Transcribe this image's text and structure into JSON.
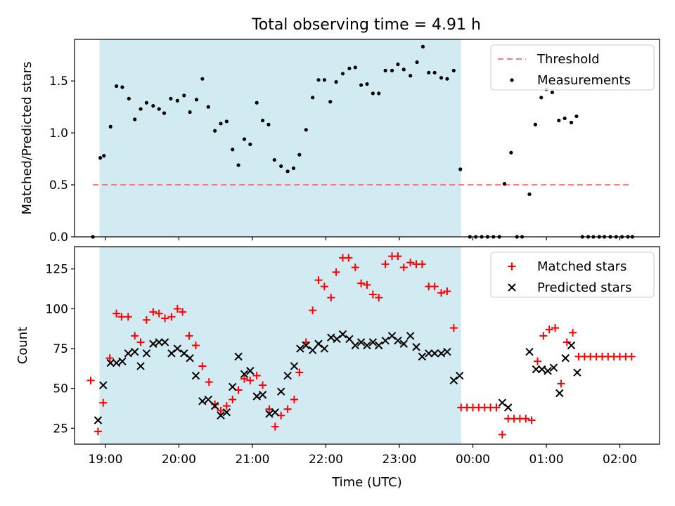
{
  "chart_data": [
    {
      "type": "scatter",
      "title": "Total observing time = 4.91 h",
      "xlabel": "",
      "ylabel": "Matched/Predicted stars",
      "x_unit": "hours UTC (24 = 00:00 next day)",
      "xlim": [
        18.58,
        26.54
      ],
      "ylim": [
        0,
        1.9
      ],
      "yticks": [
        0.0,
        0.5,
        1.0,
        1.5
      ],
      "yticklabels": [
        "0.0",
        "0.5",
        "1.0",
        "1.5"
      ],
      "xticks": [
        19,
        20,
        21,
        22,
        23,
        24,
        25,
        26
      ],
      "grid": false,
      "legend_position": "top-right",
      "shaded_region": {
        "x_start": 18.92,
        "x_end": 23.84,
        "color": "#add8e6"
      },
      "series": [
        {
          "name": "Threshold",
          "style": "dashed-line",
          "color": "#ff6666",
          "points": [
            [
              18.83,
              0.5
            ],
            [
              26.17,
              0.5
            ]
          ]
        },
        {
          "name": "Measurements",
          "style": "dot",
          "color": "#000000",
          "points": [
            [
              18.83,
              0.0
            ],
            [
              18.93,
              0.76
            ],
            [
              18.98,
              0.78
            ],
            [
              19.07,
              1.06
            ],
            [
              19.15,
              1.45
            ],
            [
              19.23,
              1.44
            ],
            [
              19.32,
              1.33
            ],
            [
              19.4,
              1.13
            ],
            [
              19.48,
              1.23
            ],
            [
              19.56,
              1.29
            ],
            [
              19.65,
              1.26
            ],
            [
              19.73,
              1.23
            ],
            [
              19.8,
              1.19
            ],
            [
              19.89,
              1.33
            ],
            [
              19.98,
              1.31
            ],
            [
              20.07,
              1.36
            ],
            [
              20.15,
              1.2
            ],
            [
              20.24,
              1.32
            ],
            [
              20.32,
              1.52
            ],
            [
              20.4,
              1.25
            ],
            [
              20.49,
              1.02
            ],
            [
              20.57,
              1.09
            ],
            [
              20.65,
              1.11
            ],
            [
              20.73,
              0.84
            ],
            [
              20.81,
              0.69
            ],
            [
              20.89,
              0.94
            ],
            [
              20.97,
              0.89
            ],
            [
              21.06,
              1.29
            ],
            [
              21.14,
              1.12
            ],
            [
              21.22,
              1.08
            ],
            [
              21.3,
              0.74
            ],
            [
              21.39,
              0.68
            ],
            [
              21.48,
              0.63
            ],
            [
              21.56,
              0.66
            ],
            [
              21.64,
              0.79
            ],
            [
              21.73,
              1.03
            ],
            [
              21.82,
              1.34
            ],
            [
              21.9,
              1.51
            ],
            [
              21.98,
              1.51
            ],
            [
              22.06,
              1.3
            ],
            [
              22.14,
              1.49
            ],
            [
              22.23,
              1.57
            ],
            [
              22.32,
              1.62
            ],
            [
              22.4,
              1.63
            ],
            [
              22.48,
              1.46
            ],
            [
              22.56,
              1.47
            ],
            [
              22.64,
              1.38
            ],
            [
              22.72,
              1.38
            ],
            [
              22.81,
              1.6
            ],
            [
              22.9,
              1.6
            ],
            [
              22.98,
              1.66
            ],
            [
              23.06,
              1.61
            ],
            [
              23.15,
              1.55
            ],
            [
              23.24,
              1.68
            ],
            [
              23.32,
              1.83
            ],
            [
              23.4,
              1.58
            ],
            [
              23.48,
              1.58
            ],
            [
              23.57,
              1.53
            ],
            [
              23.65,
              1.52
            ],
            [
              23.74,
              1.6
            ],
            [
              23.83,
              0.65
            ],
            [
              23.96,
              0.0
            ],
            [
              24.04,
              0.0
            ],
            [
              24.12,
              0.0
            ],
            [
              24.2,
              0.0
            ],
            [
              24.28,
              0.0
            ],
            [
              24.36,
              0.0
            ],
            [
              24.43,
              0.51
            ],
            [
              24.52,
              0.81
            ],
            [
              24.6,
              0.0
            ],
            [
              24.67,
              0.0
            ],
            [
              24.77,
              0.41
            ],
            [
              24.85,
              1.08
            ],
            [
              24.93,
              1.34
            ],
            [
              25.0,
              1.42
            ],
            [
              25.08,
              1.39
            ],
            [
              25.17,
              1.12
            ],
            [
              25.25,
              1.14
            ],
            [
              25.34,
              1.1
            ],
            [
              25.41,
              1.16
            ],
            [
              25.49,
              0.0
            ],
            [
              25.57,
              0.0
            ],
            [
              25.64,
              0.0
            ],
            [
              25.72,
              0.0
            ],
            [
              25.79,
              0.0
            ],
            [
              25.87,
              0.0
            ],
            [
              25.95,
              0.0
            ],
            [
              26.03,
              0.0
            ],
            [
              26.11,
              0.0
            ],
            [
              26.17,
              0.0
            ]
          ]
        }
      ]
    },
    {
      "type": "scatter",
      "title": "",
      "xlabel": "Time (UTC)",
      "ylabel": "Count",
      "x_unit": "hours UTC (24 = 00:00 next day)",
      "xlim": [
        18.58,
        26.54
      ],
      "ylim": [
        15,
        139
      ],
      "yticks": [
        25,
        50,
        75,
        100,
        125
      ],
      "yticklabels": [
        "25",
        "50",
        "75",
        "100",
        "125"
      ],
      "xticks": [
        19,
        20,
        21,
        22,
        23,
        24,
        25,
        26
      ],
      "xticklabels": [
        "19:00",
        "20:00",
        "21:00",
        "22:00",
        "23:00",
        "00:00",
        "01:00",
        "02:00"
      ],
      "grid": false,
      "legend_position": "top-right",
      "shaded_region": {
        "x_start": 18.92,
        "x_end": 23.84,
        "color": "#add8e6"
      },
      "series": [
        {
          "name": "Matched stars",
          "marker": "plus",
          "color": "#ff0000",
          "points": [
            [
              18.8,
              55
            ],
            [
              18.9,
              23
            ],
            [
              18.97,
              41
            ],
            [
              19.06,
              69
            ],
            [
              19.15,
              97
            ],
            [
              19.22,
              95
            ],
            [
              19.31,
              95
            ],
            [
              19.4,
              83
            ],
            [
              19.48,
              79
            ],
            [
              19.56,
              93
            ],
            [
              19.65,
              98
            ],
            [
              19.73,
              97
            ],
            [
              19.81,
              94
            ],
            [
              19.9,
              95
            ],
            [
              19.98,
              100
            ],
            [
              20.05,
              98
            ],
            [
              20.14,
              83
            ],
            [
              20.23,
              77
            ],
            [
              20.32,
              64
            ],
            [
              20.41,
              54
            ],
            [
              20.49,
              40
            ],
            [
              20.57,
              36
            ],
            [
              20.65,
              39
            ],
            [
              20.73,
              43
            ],
            [
              20.81,
              49
            ],
            [
              20.89,
              56
            ],
            [
              20.97,
              55
            ],
            [
              21.06,
              58
            ],
            [
              21.14,
              52
            ],
            [
              21.23,
              37
            ],
            [
              21.31,
              26
            ],
            [
              21.39,
              33
            ],
            [
              21.48,
              37
            ],
            [
              21.57,
              43
            ],
            [
              21.64,
              60
            ],
            [
              21.73,
              79
            ],
            [
              21.82,
              99
            ],
            [
              21.9,
              118
            ],
            [
              21.98,
              114
            ],
            [
              22.07,
              107
            ],
            [
              22.14,
              123
            ],
            [
              22.23,
              132
            ],
            [
              22.31,
              132
            ],
            [
              22.4,
              126
            ],
            [
              22.48,
              116
            ],
            [
              22.56,
              115
            ],
            [
              22.64,
              109
            ],
            [
              22.72,
              107
            ],
            [
              22.81,
              128
            ],
            [
              22.9,
              133
            ],
            [
              22.98,
              133
            ],
            [
              23.06,
              126
            ],
            [
              23.15,
              129
            ],
            [
              23.23,
              128
            ],
            [
              23.31,
              128
            ],
            [
              23.4,
              114
            ],
            [
              23.48,
              114
            ],
            [
              23.57,
              110
            ],
            [
              23.65,
              111
            ],
            [
              23.74,
              88
            ],
            [
              23.84,
              38
            ],
            [
              23.92,
              38
            ],
            [
              24.0,
              38
            ],
            [
              24.08,
              38
            ],
            [
              24.16,
              38
            ],
            [
              24.24,
              38
            ],
            [
              24.32,
              38
            ],
            [
              24.4,
              21
            ],
            [
              24.48,
              31
            ],
            [
              24.56,
              31
            ],
            [
              24.64,
              31
            ],
            [
              24.72,
              31
            ],
            [
              24.8,
              30
            ],
            [
              24.88,
              67
            ],
            [
              24.96,
              83
            ],
            [
              25.04,
              87
            ],
            [
              25.12,
              88
            ],
            [
              25.2,
              53
            ],
            [
              25.28,
              79
            ],
            [
              25.36,
              85
            ],
            [
              25.44,
              70
            ],
            [
              25.52,
              70
            ],
            [
              25.6,
              70
            ],
            [
              25.68,
              70
            ],
            [
              25.76,
              70
            ],
            [
              25.84,
              70
            ],
            [
              25.92,
              70
            ],
            [
              26.0,
              70
            ],
            [
              26.08,
              70
            ],
            [
              26.16,
              70
            ]
          ]
        },
        {
          "name": "Predicted stars",
          "marker": "x",
          "color": "#000000",
          "points": [
            [
              18.9,
              30
            ],
            [
              18.97,
              52
            ],
            [
              19.07,
              66
            ],
            [
              19.15,
              66
            ],
            [
              19.23,
              67
            ],
            [
              19.31,
              72
            ],
            [
              19.4,
              73
            ],
            [
              19.48,
              64
            ],
            [
              19.56,
              72
            ],
            [
              19.65,
              78
            ],
            [
              19.73,
              79
            ],
            [
              19.81,
              79
            ],
            [
              19.9,
              72
            ],
            [
              19.98,
              75
            ],
            [
              20.07,
              72
            ],
            [
              20.15,
              69
            ],
            [
              20.23,
              58
            ],
            [
              20.32,
              42
            ],
            [
              20.4,
              43
            ],
            [
              20.49,
              39
            ],
            [
              20.57,
              33
            ],
            [
              20.65,
              35
            ],
            [
              20.73,
              51
            ],
            [
              20.81,
              70
            ],
            [
              20.89,
              59
            ],
            [
              20.97,
              61
            ],
            [
              21.06,
              45
            ],
            [
              21.14,
              46
            ],
            [
              21.23,
              34
            ],
            [
              21.31,
              35
            ],
            [
              21.39,
              48
            ],
            [
              21.48,
              58
            ],
            [
              21.57,
              64
            ],
            [
              21.65,
              75
            ],
            [
              21.73,
              77
            ],
            [
              21.82,
              74
            ],
            [
              21.9,
              78
            ],
            [
              21.98,
              75
            ],
            [
              22.07,
              82
            ],
            [
              22.15,
              81
            ],
            [
              22.23,
              84
            ],
            [
              22.32,
              81
            ],
            [
              22.4,
              77
            ],
            [
              22.48,
              79
            ],
            [
              22.56,
              77
            ],
            [
              22.64,
              79
            ],
            [
              22.72,
              77
            ],
            [
              22.81,
              80
            ],
            [
              22.9,
              83
            ],
            [
              22.98,
              80
            ],
            [
              23.06,
              78
            ],
            [
              23.15,
              83
            ],
            [
              23.23,
              76
            ],
            [
              23.31,
              70
            ],
            [
              23.4,
              72
            ],
            [
              23.48,
              72
            ],
            [
              23.57,
              72
            ],
            [
              23.65,
              73
            ],
            [
              23.74,
              55
            ],
            [
              23.82,
              58
            ],
            [
              24.4,
              41
            ],
            [
              24.48,
              38
            ],
            [
              24.77,
              73
            ],
            [
              24.86,
              62
            ],
            [
              24.94,
              62
            ],
            [
              25.02,
              61
            ],
            [
              25.1,
              63
            ],
            [
              25.18,
              47
            ],
            [
              25.26,
              69
            ],
            [
              25.34,
              77
            ],
            [
              25.42,
              60
            ]
          ]
        }
      ]
    }
  ]
}
